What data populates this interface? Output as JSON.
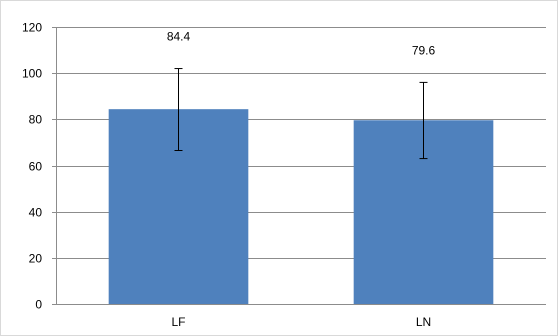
{
  "chart_data": {
    "type": "bar",
    "categories": [
      "LF",
      "LN"
    ],
    "values": [
      84.4,
      79.6
    ],
    "error_bars": [
      {
        "low": 66.5,
        "high": 102
      },
      {
        "low": 63,
        "high": 96
      }
    ],
    "data_labels": [
      "84.4",
      "79.6"
    ],
    "title": "",
    "xlabel": "",
    "ylabel": "",
    "ylim": [
      0,
      120
    ],
    "yticks": [
      0,
      20,
      40,
      60,
      80,
      100,
      120
    ],
    "grid": true,
    "legend": "none",
    "bar_color": "#4f81bd",
    "grid_color": "#8c8c8c",
    "axis_color": "#8c8c8c"
  }
}
